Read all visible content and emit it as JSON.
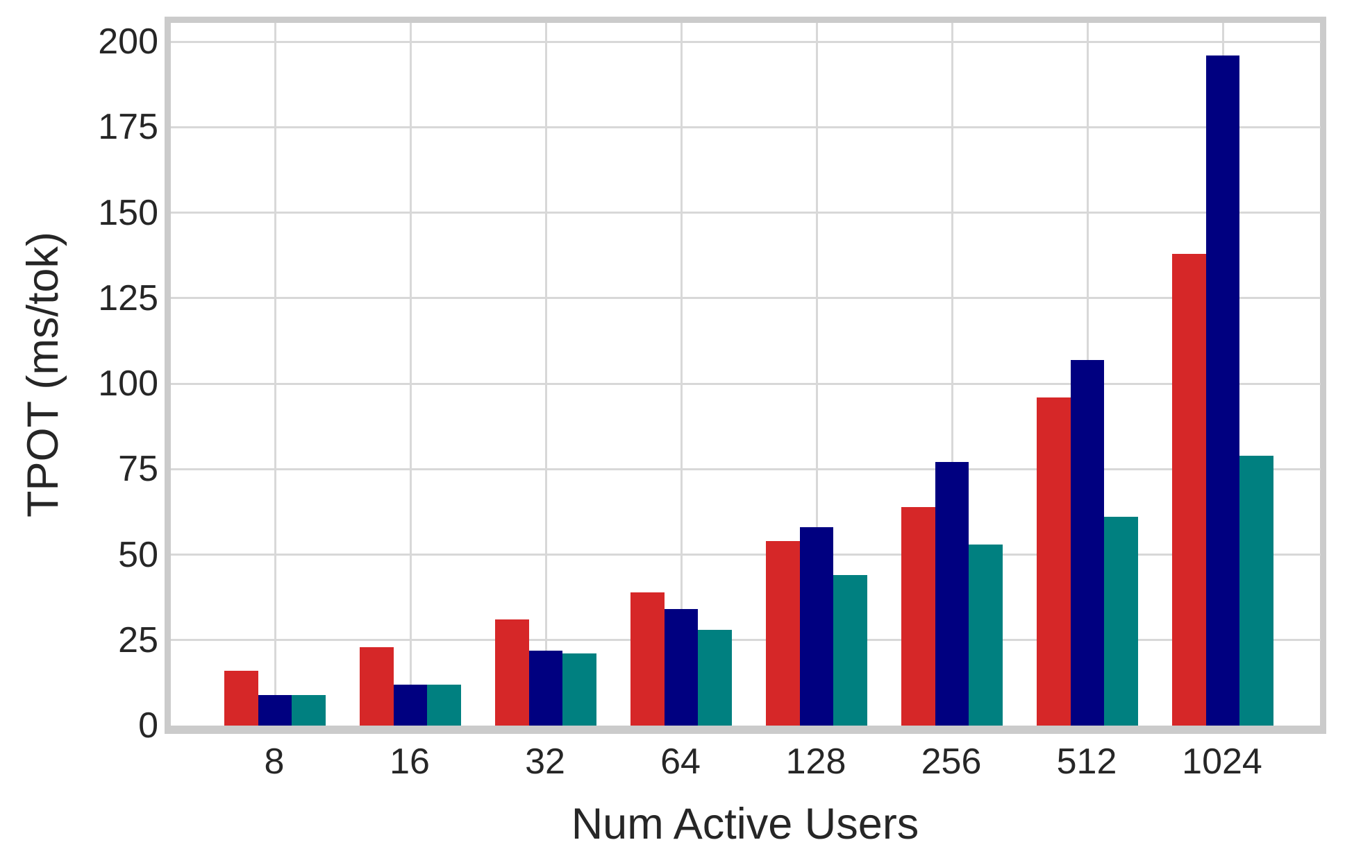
{
  "chart_data": {
    "type": "bar",
    "title": "",
    "xlabel": "Num Active Users",
    "ylabel": "TPOT (ms/tok)",
    "categories": [
      "8",
      "16",
      "32",
      "64",
      "128",
      "256",
      "512",
      "1024"
    ],
    "series": [
      {
        "name": "red-series",
        "color": "#d62728",
        "values": [
          16,
          23,
          31,
          39,
          54,
          64,
          96,
          138
        ]
      },
      {
        "name": "navy-series",
        "color": "#000080",
        "values": [
          9,
          12,
          22,
          34,
          58,
          77,
          107,
          196
        ]
      },
      {
        "name": "teal-series",
        "color": "#008080",
        "values": [
          9,
          12,
          21,
          28,
          44,
          53,
          61,
          79
        ]
      }
    ],
    "yticks": [
      0,
      25,
      50,
      75,
      100,
      125,
      150,
      175,
      200
    ],
    "ylim": [
      0,
      205.5
    ],
    "grid": "on",
    "legend": "none",
    "colors": {
      "spine": "#cbcbcb",
      "gridline": "#d8d8d8",
      "text": "#262626",
      "background": "#ffffff"
    }
  }
}
